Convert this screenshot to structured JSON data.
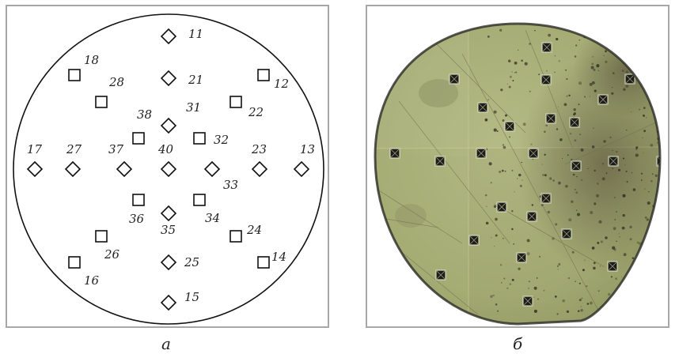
{
  "captions": {
    "left": "а",
    "right": "б"
  },
  "indentation_points": [
    {
      "label": "11",
      "shape": "diamond"
    },
    {
      "label": "12",
      "shape": "square"
    },
    {
      "label": "13",
      "shape": "diamond"
    },
    {
      "label": "14",
      "shape": "square"
    },
    {
      "label": "15",
      "shape": "diamond"
    },
    {
      "label": "16",
      "shape": "square"
    },
    {
      "label": "17",
      "shape": "diamond"
    },
    {
      "label": "18",
      "shape": "square"
    },
    {
      "label": "21",
      "shape": "diamond"
    },
    {
      "label": "22",
      "shape": "square"
    },
    {
      "label": "23",
      "shape": "diamond"
    },
    {
      "label": "24",
      "shape": "square"
    },
    {
      "label": "25",
      "shape": "diamond"
    },
    {
      "label": "26",
      "shape": "square"
    },
    {
      "label": "27",
      "shape": "diamond"
    },
    {
      "label": "28",
      "shape": "square"
    },
    {
      "label": "31",
      "shape": "diamond"
    },
    {
      "label": "32",
      "shape": "square"
    },
    {
      "label": "33",
      "shape": "diamond"
    },
    {
      "label": "34",
      "shape": "square"
    },
    {
      "label": "35",
      "shape": "diamond"
    },
    {
      "label": "36",
      "shape": "square"
    },
    {
      "label": "37",
      "shape": "diamond"
    },
    {
      "label": "38",
      "shape": "square"
    },
    {
      "label": "40",
      "shape": "diamond"
    }
  ],
  "colors": {
    "panel_border": "#a7a7a7",
    "line": "#111111",
    "micrograph_base": "#a9b07a",
    "micrograph_dark": "#2e2b1e"
  }
}
